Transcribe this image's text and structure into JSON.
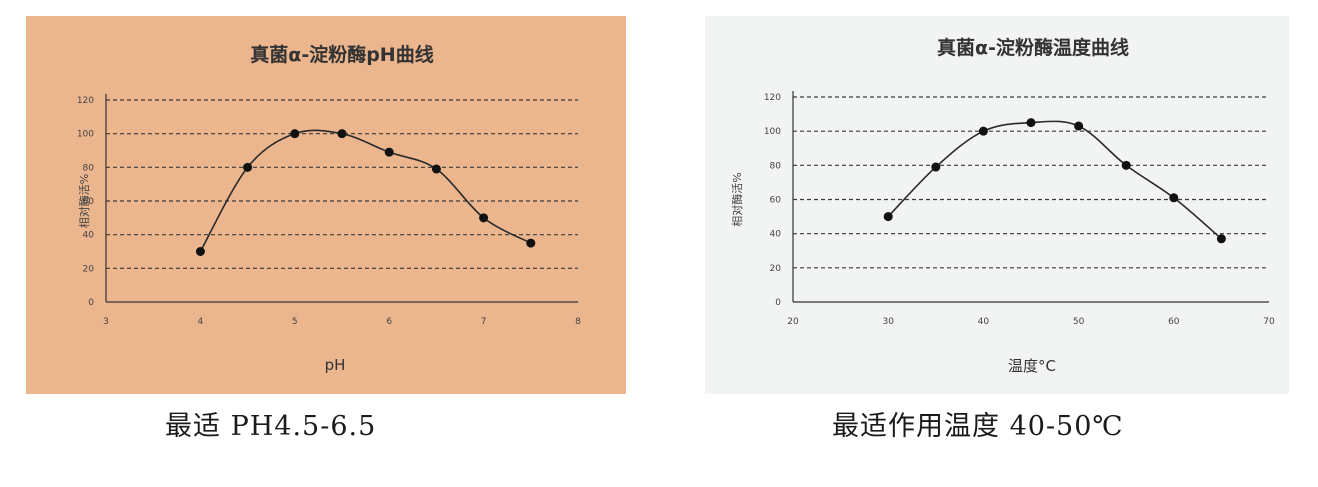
{
  "chart_data": [
    {
      "type": "line",
      "title": "真菌α-淀粉酶pH曲线",
      "xlabel": "pH",
      "ylabel": "相对酶活%",
      "xlim": [
        3,
        8
      ],
      "ylim": [
        0,
        120
      ],
      "x_ticks": [
        "3",
        "4",
        "5",
        "6",
        "7",
        "8"
      ],
      "y_ticks": [
        "0",
        "20",
        "40",
        "60",
        "80",
        "100",
        "120"
      ],
      "grid": true,
      "background": "#ebb58d",
      "series": [
        {
          "x": [
            4,
            4.5,
            5,
            5.5,
            6,
            6.5,
            7,
            7.5
          ],
          "y": [
            30,
            80,
            100,
            100,
            89,
            79,
            50,
            35
          ]
        }
      ]
    },
    {
      "type": "line",
      "title": "真菌α-淀粉酶温度曲线",
      "xlabel": "温度°C",
      "ylabel": "相对酶活%",
      "xlim": [
        20,
        70
      ],
      "ylim": [
        0,
        120
      ],
      "x_ticks": [
        "20",
        "30",
        "40",
        "50",
        "60",
        "70"
      ],
      "y_ticks": [
        "0",
        "20",
        "40",
        "60",
        "80",
        "100",
        "120"
      ],
      "grid": true,
      "background": "#f2f3f3",
      "series": [
        {
          "x": [
            30,
            35,
            40,
            45,
            50,
            55,
            60,
            65
          ],
          "y": [
            50,
            79,
            100,
            105,
            103,
            80,
            61,
            37
          ]
        }
      ]
    }
  ],
  "captions": {
    "ph": "最适 PH4.5-6.5",
    "temp": "最适作用温度 40-50℃"
  }
}
